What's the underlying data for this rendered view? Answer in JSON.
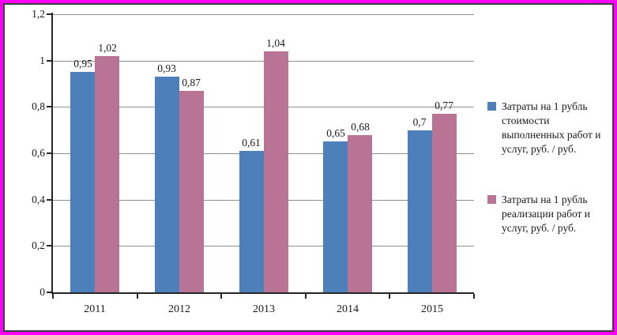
{
  "chart_data": {
    "type": "bar",
    "title": "",
    "xlabel": "",
    "ylabel": "",
    "categories": [
      "2011",
      "2012",
      "2013",
      "2014",
      "2015"
    ],
    "series": [
      {
        "name": "Затраты на 1 рубль стоимости выполненных работ и услуг, руб. / руб.",
        "color": "#4d80bb",
        "values": [
          0.95,
          0.93,
          0.61,
          0.65,
          0.7
        ],
        "value_labels": [
          "0,95",
          "0,93",
          "0,61",
          "0,65",
          "0,7"
        ]
      },
      {
        "name": "Затраты на 1 рубль реализации работ и услуг, руб. / руб.",
        "color": "#b97394",
        "values": [
          1.02,
          0.87,
          1.04,
          0.68,
          0.77
        ],
        "value_labels": [
          "1,02",
          "0,87",
          "1,04",
          "0,68",
          "0,77"
        ]
      }
    ],
    "ylim": [
      0,
      1.2
    ],
    "yticks": [
      {
        "value": 0,
        "label": "0"
      },
      {
        "value": 0.2,
        "label": "0,2"
      },
      {
        "value": 0.4,
        "label": "0,4"
      },
      {
        "value": 0.6,
        "label": "0,6"
      },
      {
        "value": 0.8,
        "label": "0,8"
      },
      {
        "value": 1,
        "label": "1"
      },
      {
        "value": 1.2,
        "label": "1,2"
      }
    ],
    "grid": true,
    "legend_position": "right"
  },
  "legend": {
    "items": [
      {
        "label": "Затраты на 1 рубль\nстоимости\nвыполненных работ и\nуслуг, руб. / руб.",
        "color": "#4d80bb"
      },
      {
        "label": "Затраты на 1 рубль\nреализации работ и\nуслуг,  руб. / руб.",
        "color": "#b97394"
      }
    ]
  },
  "frame": {
    "outer_border_color": "#ff00ff",
    "inner_border_color": "#3f3f3f",
    "background": "#ffffff"
  },
  "axis_style": {
    "line_color": "#262626",
    "grid_color": "#8f8f8f",
    "text_color": "#1a1a1a"
  }
}
